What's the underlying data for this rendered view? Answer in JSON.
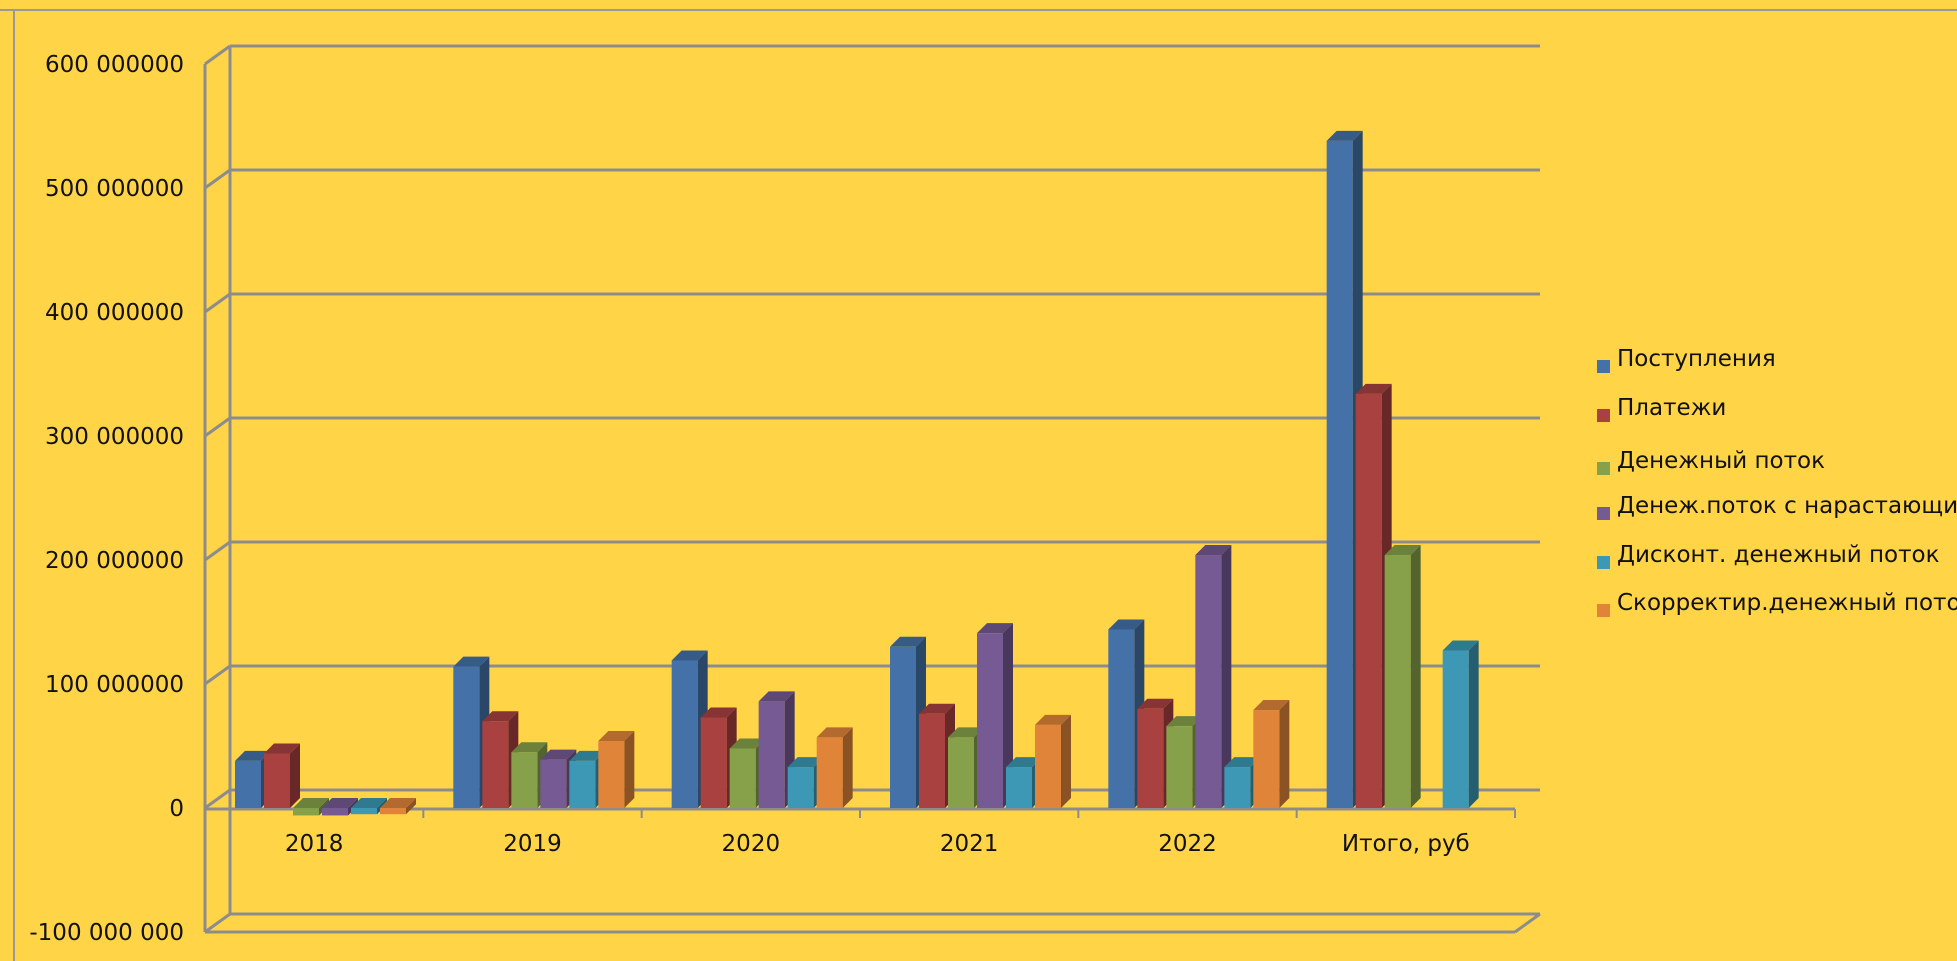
{
  "chart_data": {
    "type": "bar",
    "style": "3d-clustered-column",
    "categories": [
      "2018",
      "2019",
      "2020",
      "2021",
      "2022",
      "Итого, руб"
    ],
    "series": [
      {
        "name": "Поступления",
        "color": "#4472A8",
        "values": [
          38000000,
          114000000,
          119000000,
          130000000,
          144000000,
          538000000
        ]
      },
      {
        "name": "Платежи",
        "color": "#A94141",
        "values": [
          44000000,
          70000000,
          73000000,
          76000000,
          80000000,
          334000000
        ]
      },
      {
        "name": "Денежный поток",
        "color": "#87A14B",
        "values": [
          -6000000,
          45000000,
          48000000,
          57000000,
          66000000,
          204000000
        ]
      },
      {
        "name": "Денеж.поток с нарастающим",
        "color": "#755A93",
        "values": [
          -6000000,
          39000000,
          86000000,
          141000000,
          204000000,
          null
        ]
      },
      {
        "name": "Дисконт. денежный поток",
        "color": "#3C98B4",
        "values": [
          -5000000,
          38000000,
          33000000,
          33000000,
          33000000,
          127000000
        ]
      },
      {
        "name": "Скорректир.денежный поток",
        "color": "#E0843A",
        "values": [
          -5000000,
          54000000,
          57000000,
          67000000,
          79000000,
          null
        ]
      }
    ],
    "y_ticks": [
      "600 000000",
      "500 000000",
      "400 000000",
      "300 000000",
      "200 000000",
      "100 000000",
      "0",
      "-100 000 000"
    ],
    "ylim": [
      -100000000,
      600000000
    ],
    "grid": true,
    "legend_position": "right",
    "background": "#FFD447",
    "title": "",
    "xlabel": "",
    "ylabel": ""
  }
}
